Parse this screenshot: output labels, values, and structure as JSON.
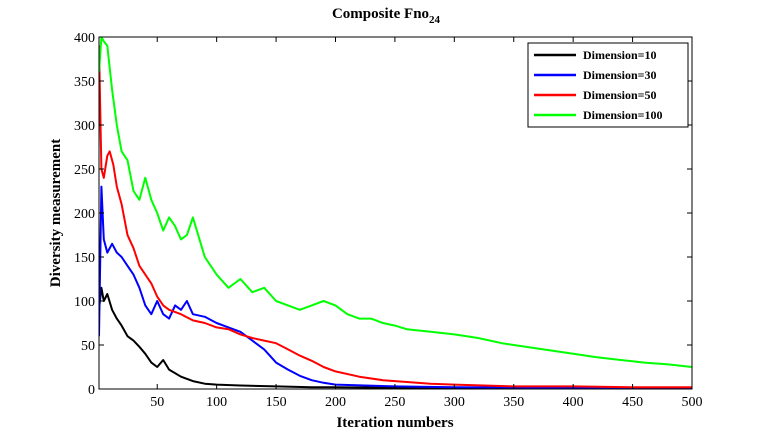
{
  "chart_data": {
    "type": "line",
    "title": "Composite Fno",
    "title_subscript": "24",
    "xlabel": "Iteration numbers",
    "ylabel": "Diversity measurement",
    "xlim": [
      1,
      500
    ],
    "ylim": [
      0,
      400
    ],
    "xticks": [
      50,
      100,
      150,
      200,
      250,
      300,
      350,
      400,
      450,
      500
    ],
    "yticks": [
      0,
      50,
      100,
      150,
      200,
      250,
      300,
      350,
      400
    ],
    "grid": false,
    "legend_position": "top-right",
    "series": [
      {
        "name": "Dimension=10",
        "color": "#000000",
        "x": [
          1,
          3,
          5,
          8,
          12,
          16,
          20,
          25,
          30,
          35,
          40,
          45,
          50,
          55,
          60,
          70,
          80,
          90,
          100,
          120,
          150,
          180,
          200,
          250,
          300,
          400,
          500
        ],
        "y": [
          90,
          115,
          100,
          108,
          90,
          80,
          72,
          60,
          55,
          48,
          40,
          30,
          25,
          33,
          22,
          14,
          9,
          6,
          5,
          4,
          3,
          2,
          2,
          1.5,
          1,
          1,
          1
        ]
      },
      {
        "name": "Dimension=30",
        "color": "#0000ff",
        "x": [
          1,
          3,
          5,
          8,
          12,
          16,
          20,
          25,
          30,
          35,
          40,
          45,
          50,
          55,
          60,
          65,
          70,
          75,
          80,
          90,
          100,
          110,
          120,
          130,
          140,
          150,
          160,
          170,
          180,
          190,
          200,
          250,
          300,
          400,
          500
        ],
        "y": [
          60,
          230,
          170,
          155,
          165,
          155,
          150,
          140,
          130,
          115,
          95,
          85,
          100,
          85,
          80,
          95,
          90,
          100,
          85,
          82,
          75,
          70,
          65,
          55,
          45,
          30,
          22,
          15,
          10,
          7,
          5,
          3,
          2,
          1.5,
          1
        ]
      },
      {
        "name": "Dimension=50",
        "color": "#ff0000",
        "x": [
          1,
          3,
          5,
          8,
          10,
          13,
          16,
          20,
          25,
          30,
          35,
          40,
          45,
          50,
          55,
          60,
          70,
          80,
          90,
          100,
          110,
          120,
          130,
          140,
          150,
          160,
          170,
          180,
          190,
          200,
          220,
          240,
          260,
          280,
          300,
          350,
          400,
          450,
          500
        ],
        "y": [
          390,
          250,
          240,
          265,
          270,
          255,
          230,
          210,
          175,
          160,
          140,
          130,
          120,
          105,
          95,
          90,
          85,
          78,
          75,
          70,
          68,
          62,
          58,
          55,
          52,
          45,
          38,
          32,
          25,
          20,
          14,
          10,
          8,
          6,
          5,
          3,
          3,
          2,
          2
        ]
      },
      {
        "name": "Dimension=100",
        "color": "#00ff00",
        "x": [
          1,
          3,
          5,
          8,
          12,
          16,
          20,
          25,
          30,
          35,
          40,
          45,
          50,
          55,
          60,
          65,
          70,
          75,
          80,
          90,
          100,
          110,
          120,
          130,
          140,
          150,
          160,
          170,
          180,
          190,
          200,
          210,
          220,
          230,
          240,
          250,
          260,
          280,
          300,
          320,
          340,
          360,
          380,
          400,
          420,
          440,
          460,
          480,
          500
        ],
        "y": [
          360,
          400,
          395,
          390,
          340,
          300,
          270,
          260,
          225,
          215,
          240,
          215,
          200,
          180,
          195,
          185,
          170,
          175,
          195,
          150,
          130,
          115,
          125,
          110,
          115,
          100,
          95,
          90,
          95,
          100,
          95,
          85,
          80,
          80,
          75,
          72,
          68,
          65,
          62,
          58,
          52,
          48,
          44,
          40,
          36,
          33,
          30,
          28,
          25
        ]
      }
    ]
  }
}
